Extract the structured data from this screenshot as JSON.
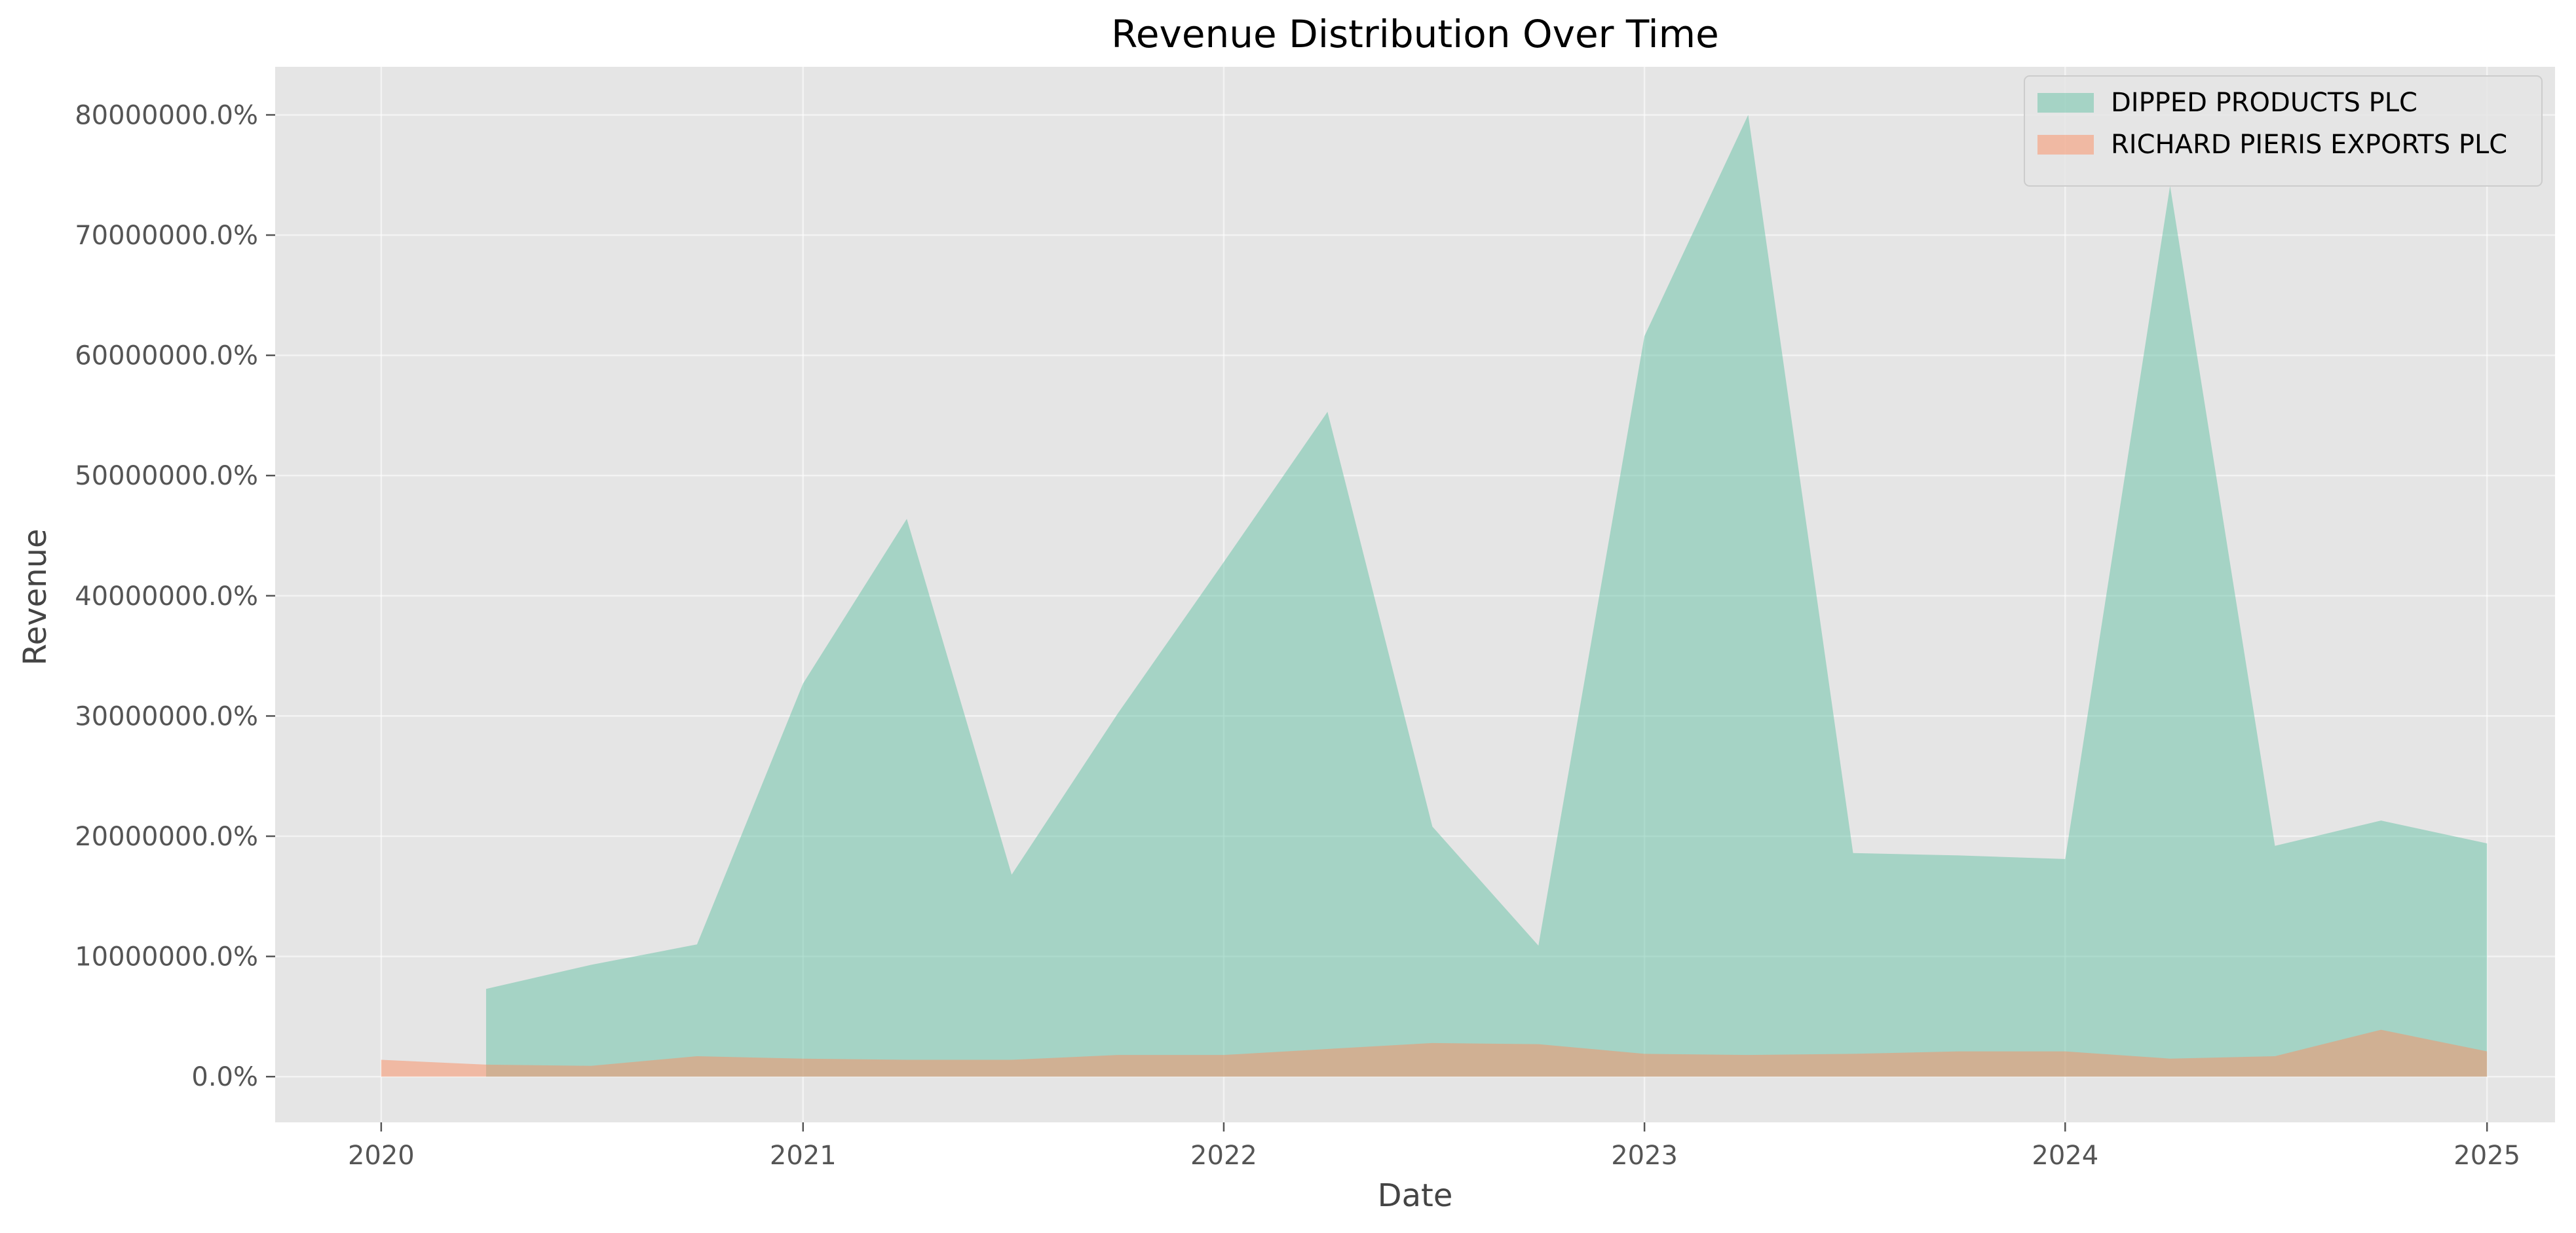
{
  "chart_data": {
    "type": "area",
    "title": "Revenue Distribution Over Time",
    "xlabel": "Date",
    "ylabel": "Revenue",
    "x_ticks": [
      "2020",
      "2021",
      "2022",
      "2023",
      "2024",
      "2025"
    ],
    "y_ticks": [
      "0.0%",
      "10000000.0%",
      "20000000.0%",
      "30000000.0%",
      "40000000.0%",
      "50000000.0%",
      "60000000.0%",
      "70000000.0%",
      "80000000.0%"
    ],
    "ylim": [
      -3800000,
      84000000
    ],
    "xlim": [
      "2019-10-01",
      "2025-03-01"
    ],
    "grid": true,
    "legend_position": "top-right",
    "series": [
      {
        "name": "DIPPED PRODUCTS PLC",
        "color": "#66c2a5",
        "alpha": 0.5,
        "points": [
          [
            "2020-04-01",
            7300000
          ],
          [
            "2020-07-01",
            9300000
          ],
          [
            "2020-10-01",
            11000000
          ],
          [
            "2021-01-01",
            32700000
          ],
          [
            "2021-04-01",
            46400000
          ],
          [
            "2021-07-01",
            16800000
          ],
          [
            "2021-10-01",
            30200000
          ],
          [
            "2022-01-01",
            42800000
          ],
          [
            "2022-04-01",
            55300000
          ],
          [
            "2022-07-01",
            20800000
          ],
          [
            "2022-10-01",
            10900000
          ],
          [
            "2023-01-01",
            61600000
          ],
          [
            "2023-04-01",
            80000000
          ],
          [
            "2023-07-01",
            18600000
          ],
          [
            "2023-10-01",
            18400000
          ],
          [
            "2024-01-01",
            18100000
          ],
          [
            "2024-04-01",
            74100000
          ],
          [
            "2024-07-01",
            19200000
          ],
          [
            "2024-10-01",
            21300000
          ],
          [
            "2025-01-01",
            19400000
          ]
        ]
      },
      {
        "name": "RICHARD PIERIS EXPORTS PLC",
        "color": "#fc8d62",
        "alpha": 0.5,
        "points": [
          [
            "2020-01-01",
            1400000
          ],
          [
            "2020-04-01",
            1000000
          ],
          [
            "2020-07-01",
            900000
          ],
          [
            "2020-10-01",
            1700000
          ],
          [
            "2021-01-01",
            1500000
          ],
          [
            "2021-04-01",
            1400000
          ],
          [
            "2021-07-01",
            1400000
          ],
          [
            "2021-10-01",
            1800000
          ],
          [
            "2022-01-01",
            1800000
          ],
          [
            "2022-04-01",
            2300000
          ],
          [
            "2022-07-01",
            2800000
          ],
          [
            "2022-10-01",
            2700000
          ],
          [
            "2023-01-01",
            1900000
          ],
          [
            "2023-04-01",
            1800000
          ],
          [
            "2023-07-01",
            1900000
          ],
          [
            "2023-10-01",
            2100000
          ],
          [
            "2024-01-01",
            2100000
          ],
          [
            "2024-04-01",
            1500000
          ],
          [
            "2024-07-01",
            1700000
          ],
          [
            "2024-10-01",
            3900000
          ],
          [
            "2025-01-01",
            2100000
          ]
        ]
      }
    ]
  }
}
